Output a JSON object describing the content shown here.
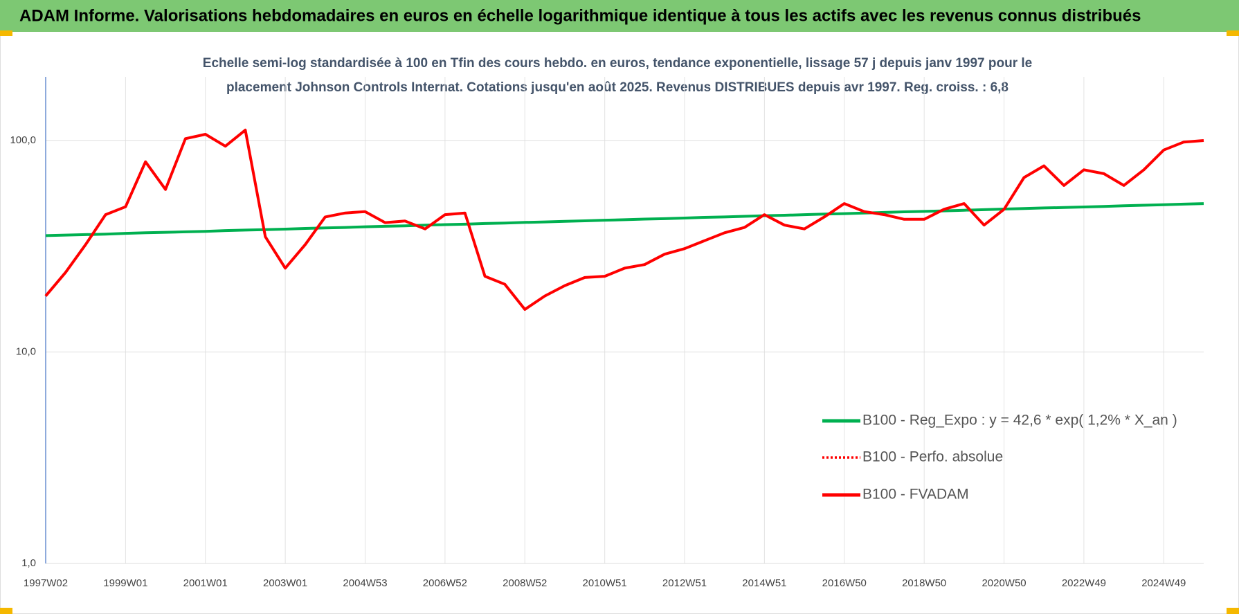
{
  "header": {
    "title": "ADAM Informe. Valorisations hebdomadaires en euros en échelle logarithmique identique à tous les actifs avec les revenus connus distribués"
  },
  "chart_data": {
    "type": "line",
    "subtitle": [
      "Echelle semi-log standardisée à 100 en Tfin des cours hebdo. en euros, tendance exponentielle, lissage 57 j depuis janv 1997 pour le",
      "placement Johnson Controls Internat. Cotations jusqu'en août 2025. Revenus DISTRIBUES depuis avr 1997.  Reg. croiss. : 6,8"
    ],
    "categories": [
      "1997W02",
      null,
      null,
      null,
      "1999W01",
      null,
      null,
      null,
      "2001W01",
      null,
      null,
      null,
      "2003W01",
      null,
      null,
      null,
      "2004W53",
      null,
      null,
      null,
      "2006W52",
      null,
      null,
      null,
      "2008W52",
      null,
      null,
      null,
      "2010W51",
      null,
      null,
      null,
      "2012W51",
      null,
      null,
      null,
      "2014W51",
      null,
      null,
      null,
      "2016W50",
      null,
      null,
      null,
      "2018W50",
      null,
      null,
      null,
      "2020W50",
      null,
      null,
      null,
      "2022W49",
      null,
      null,
      null,
      "2024W49",
      null,
      null
    ],
    "series": [
      {
        "name": "B100 - Reg_Expo : y = 42,6 * exp( 1,2% *  X_an )",
        "color": "#00b050",
        "style": "solid",
        "values": [
          35.5,
          35.7,
          35.9,
          36.1,
          36.4,
          36.6,
          36.8,
          37.0,
          37.2,
          37.5,
          37.7,
          37.9,
          38.1,
          38.4,
          38.6,
          38.8,
          39.1,
          39.3,
          39.5,
          39.8,
          40.0,
          40.2,
          40.5,
          40.7,
          41.0,
          41.2,
          41.5,
          41.7,
          42.0,
          42.2,
          42.5,
          42.7,
          43.0,
          43.3,
          43.5,
          43.8,
          44.1,
          44.3,
          44.6,
          44.9,
          45.1,
          45.4,
          45.7,
          46.0,
          46.2,
          46.5,
          46.8,
          47.1,
          47.4,
          47.7,
          48.0,
          48.2,
          48.5,
          48.8,
          49.1,
          49.4,
          49.7,
          50.0,
          50.3
        ]
      },
      {
        "name": "B100 - Perfo. absolue",
        "color": "#ff0000",
        "style": "dotted",
        "values": [
          18.4,
          23.8,
          32.2,
          44.6,
          48.6,
          79.3,
          58.7,
          102,
          107,
          94,
          112,
          35.1,
          24.9,
          32.2,
          43.5,
          45.4,
          46.1,
          40.9,
          41.6,
          38.2,
          44.6,
          45.4,
          22.8,
          20.9,
          15.9,
          18.4,
          20.6,
          22.5,
          22.8,
          24.9,
          25.9,
          29.0,
          30.8,
          33.6,
          36.6,
          38.8,
          44.6,
          39.8,
          38.2,
          43.5,
          50.3,
          46.1,
          44.6,
          42.4,
          42.4,
          47.3,
          50.3,
          39.8,
          47.3,
          66.8,
          75.9,
          61.3,
          72.7,
          69.7,
          61.3,
          72.7,
          90.2,
          98.3,
          100
        ]
      },
      {
        "name": "B100 - FVADAM",
        "color": "#ff0000",
        "style": "solid",
        "values": [
          18.4,
          23.8,
          32.2,
          44.6,
          48.6,
          79.3,
          58.7,
          102,
          107,
          94,
          112,
          35.1,
          24.9,
          32.2,
          43.5,
          45.4,
          46.1,
          40.9,
          41.6,
          38.2,
          44.6,
          45.4,
          22.8,
          20.9,
          15.9,
          18.4,
          20.6,
          22.5,
          22.8,
          24.9,
          25.9,
          29.0,
          30.8,
          33.6,
          36.6,
          38.8,
          44.6,
          39.8,
          38.2,
          43.5,
          50.3,
          46.1,
          44.6,
          42.4,
          42.4,
          47.3,
          50.3,
          39.8,
          47.3,
          66.8,
          75.9,
          61.3,
          72.7,
          69.7,
          61.3,
          72.7,
          90.2,
          98.3,
          100
        ]
      }
    ],
    "ylim": [
      1,
      200
    ],
    "log_y": true,
    "yticks": [
      {
        "value": 1,
        "label": "1,0"
      },
      {
        "value": 10,
        "label": "10,0"
      },
      {
        "value": 100,
        "label": "100,0"
      }
    ],
    "grid": true,
    "legend": "lower right"
  }
}
